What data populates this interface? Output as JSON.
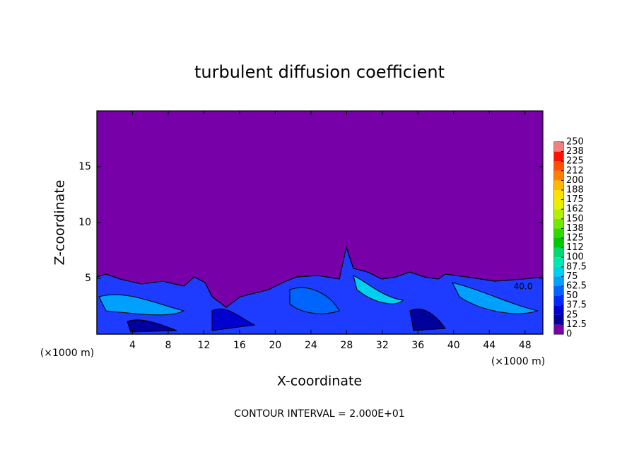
{
  "chart_data": {
    "type": "contour",
    "title": "turbulent diffusion coefficient",
    "x_label": "X-coordinate",
    "y_label": "Z-coordinate",
    "x_unit": "(×1000 m)",
    "footer": "CONTOUR INTERVAL = 2.000E+01",
    "annotation": "40.0",
    "xlim": [
      0,
      50
    ],
    "xticks": [
      4,
      8,
      12,
      16,
      20,
      24,
      28,
      32,
      36,
      40,
      44,
      48
    ],
    "ylim": [
      0,
      20
    ],
    "yticks": [
      5,
      10,
      15
    ],
    "colorbar": {
      "ticks": [
        0,
        12.5,
        25,
        37.5,
        50,
        62.5,
        75,
        87.5,
        100,
        {
          "value": 112.5,
          "label": "112"
        },
        125,
        {
          "value": 137.5,
          "label": "138"
        },
        150,
        {
          "value": 162.5,
          "label": "162"
        },
        175,
        {
          "value": 187.5,
          "label": "188"
        },
        200,
        {
          "value": 212.5,
          "label": "212"
        },
        225,
        {
          "value": 237.5,
          "label": "238"
        },
        250
      ],
      "colors": [
        "#7800a8",
        "#00009c",
        "#0000d0",
        "#0028ff",
        "#0064ff",
        "#00a0ff",
        "#00d0f0",
        "#00e8b0",
        "#00d870",
        "#00c800",
        "#30d800",
        "#70e800",
        "#b0f000",
        "#e8f000",
        "#ffe000",
        "#ffb800",
        "#ff8000",
        "#ff5000",
        "#ff1000",
        "#f08080"
      ]
    }
  }
}
